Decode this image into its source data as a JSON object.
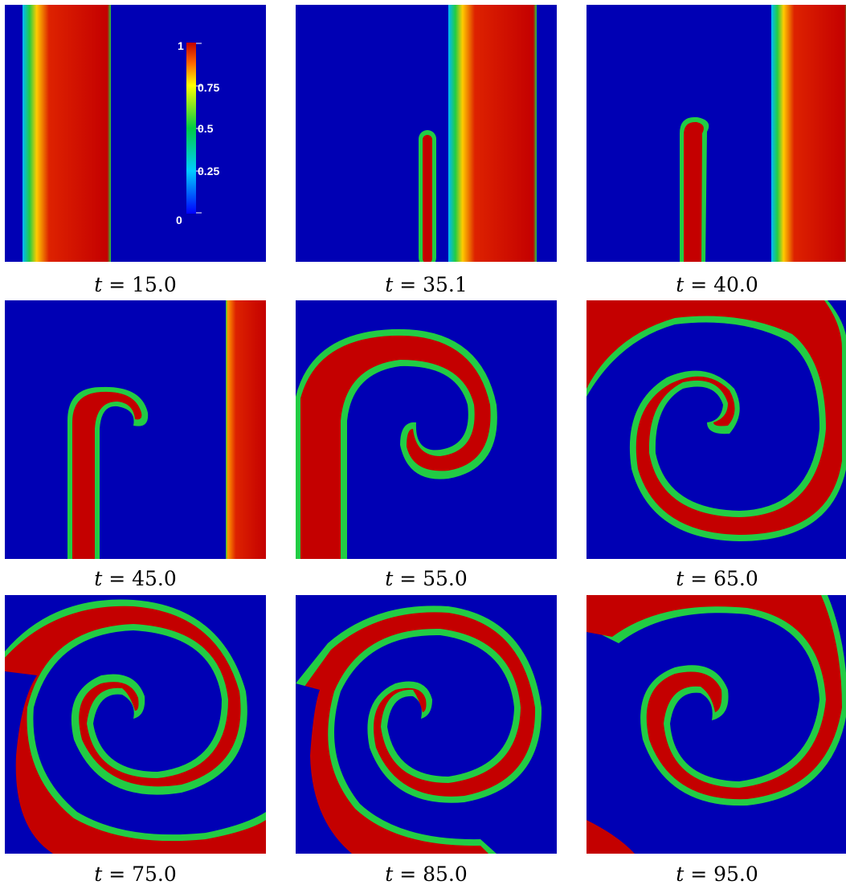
{
  "figure": {
    "panels": [
      {
        "t_var": "t",
        "t_value": "15.0"
      },
      {
        "t_var": "t",
        "t_value": "35.1"
      },
      {
        "t_var": "t",
        "t_value": "40.0"
      },
      {
        "t_var": "t",
        "t_value": "45.0"
      },
      {
        "t_var": "t",
        "t_value": "55.0"
      },
      {
        "t_var": "t",
        "t_value": "65.0"
      },
      {
        "t_var": "t",
        "t_value": "75.0"
      },
      {
        "t_var": "t",
        "t_value": "85.0"
      },
      {
        "t_var": "t",
        "t_value": "95.0"
      }
    ],
    "colorbar": {
      "ticks": [
        "1",
        "0.75",
        "0.5",
        "0.25",
        "0"
      ],
      "colors": [
        "#c00000",
        "#e06000",
        "#ffff00",
        "#00cc66",
        "#00ccff",
        "#0000ff"
      ]
    },
    "palette": {
      "background": "#0000b4",
      "wave_core": "#c40000",
      "wave_mid": "#ff8800",
      "wave_front": "#22cc44"
    }
  }
}
